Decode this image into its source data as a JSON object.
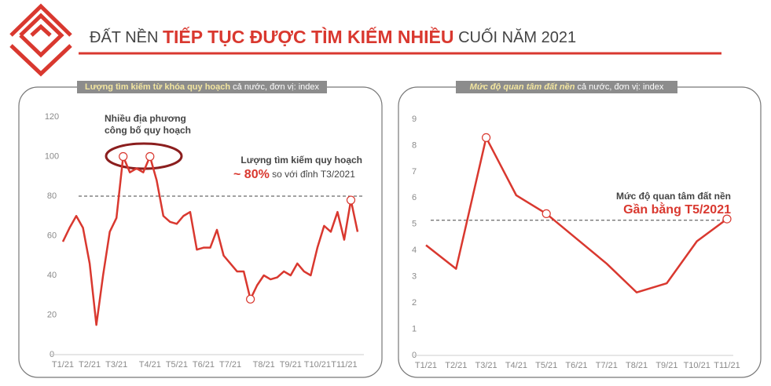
{
  "header": {
    "title_pre": "ĐẤT NỀN",
    "title_highlight": "TIẾP TỤC ĐƯỢC TÌM KIẾM NHIỀU",
    "title_post": "CUỐI NĂM 2021"
  },
  "chart_data": [
    {
      "type": "line",
      "subtitle_bold": "Lượng tìm kiếm từ khóa quy hoạch",
      "subtitle": "cả nước, đơn vị: index",
      "categories": [
        "T1/21",
        null,
        null,
        null,
        "T2/21",
        null,
        null,
        null,
        "T3/21",
        null,
        null,
        null,
        null,
        "T4/21",
        null,
        null,
        null,
        "T5/21",
        null,
        null,
        null,
        "T6/21",
        null,
        null,
        null,
        "T7/21",
        null,
        null,
        null,
        null,
        "T8/21",
        null,
        null,
        null,
        "T9/21",
        null,
        null,
        null,
        "T10/21",
        null,
        null,
        null,
        "T11/21",
        null,
        null
      ],
      "values": [
        57,
        64,
        70,
        64,
        46,
        15,
        40,
        62,
        69,
        100,
        92,
        94,
        92,
        100,
        88,
        70,
        67,
        66,
        70,
        72,
        53,
        54,
        54,
        63,
        50,
        46,
        42,
        42,
        28,
        35,
        40,
        38,
        39,
        42,
        40,
        46,
        42,
        40,
        54,
        65,
        62,
        72,
        58,
        78,
        62
      ],
      "color": "#d9382f",
      "markers": [
        9,
        13,
        28,
        43
      ],
      "reference_line": 80,
      "ylim": [
        0,
        120
      ],
      "yticks": [
        0,
        20,
        40,
        60,
        80,
        100,
        120
      ],
      "annotation_event": [
        "Nhiều địa phương",
        "công bố quy hoạch"
      ],
      "annotation_title": "Lượng tìm kiếm quy hoạch",
      "annotation_value": "~ 80%",
      "annotation_note": "so với đỉnh T3/2021"
    },
    {
      "type": "line",
      "subtitle_bold": "Mức độ quan tâm đất nền",
      "subtitle": "cả nước, đơn vị: index",
      "categories": [
        "T1/21",
        "T2/21",
        "T3/21",
        "T4/21",
        "T5/21",
        "T6/21",
        "T7/21",
        "T8/21",
        "T9/21",
        "T10/21",
        "T11/21"
      ],
      "values": [
        4.2,
        3.3,
        8.3,
        6.1,
        5.4,
        4.45,
        3.5,
        2.4,
        2.75,
        4.35,
        5.2
      ],
      "color": "#d9382f",
      "markers": [
        2,
        4,
        10
      ],
      "reference_line": 5.15,
      "ylim": [
        0,
        9
      ],
      "yticks": [
        0,
        1,
        2,
        3,
        4,
        5,
        6,
        7,
        8,
        9
      ],
      "annotation_title": "Mức độ quan tâm đất nền",
      "annotation_value": "Gần bằng T5/2021"
    }
  ]
}
